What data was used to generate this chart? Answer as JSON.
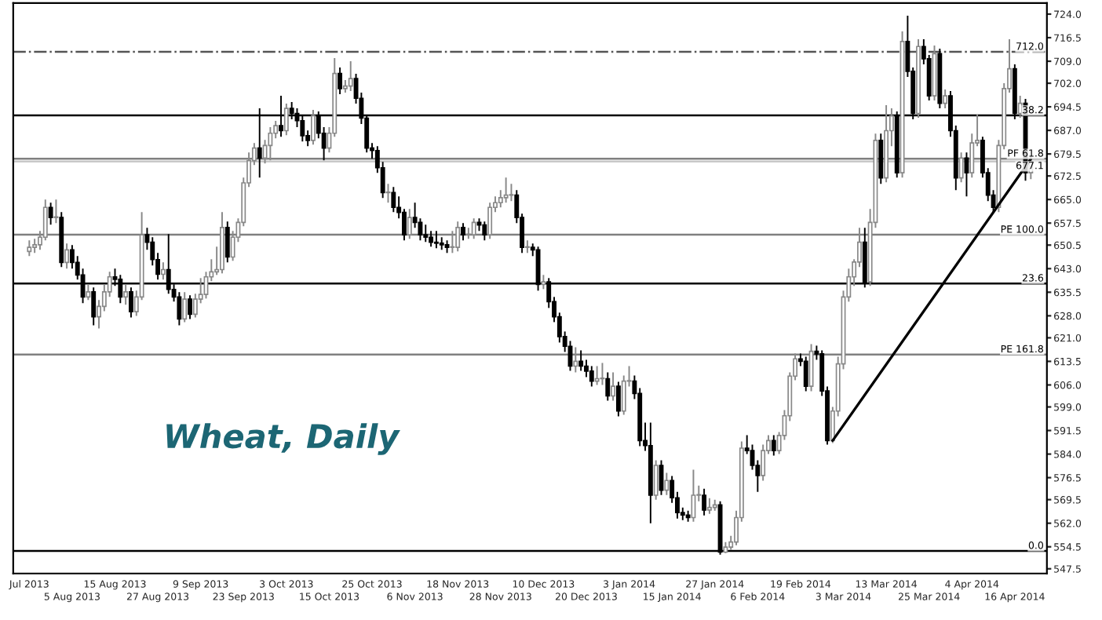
{
  "chart_data": {
    "type": "candlestick",
    "title": "Wheat, Daily",
    "categories": [
      "Jul 2013",
      null,
      null,
      null,
      null,
      null,
      null,
      null,
      "5 Aug 2013",
      null,
      null,
      null,
      null,
      null,
      null,
      null,
      "15 Aug 2013",
      null,
      null,
      null,
      null,
      null,
      null,
      null,
      "27 Aug 2013",
      null,
      null,
      null,
      null,
      null,
      null,
      null,
      "9 Sep 2013",
      null,
      null,
      null,
      null,
      null,
      null,
      null,
      "23 Sep 2013",
      null,
      null,
      null,
      null,
      null,
      null,
      null,
      "3 Oct 2013",
      null,
      null,
      null,
      null,
      null,
      null,
      null,
      "15 Oct 2013",
      null,
      null,
      null,
      null,
      null,
      null,
      null,
      "25 Oct 2013",
      null,
      null,
      null,
      null,
      null,
      null,
      null,
      "6 Nov 2013",
      null,
      null,
      null,
      null,
      null,
      null,
      null,
      "18 Nov 2013",
      null,
      null,
      null,
      null,
      null,
      null,
      null,
      "28 Nov 2013",
      null,
      null,
      null,
      null,
      null,
      null,
      null,
      "10 Dec 2013",
      null,
      null,
      null,
      null,
      null,
      null,
      null,
      "20 Dec 2013",
      null,
      null,
      null,
      null,
      null,
      null,
      null,
      "3 Jan 2014",
      null,
      null,
      null,
      null,
      null,
      null,
      null,
      "15 Jan 2014",
      null,
      null,
      null,
      null,
      null,
      null,
      null,
      "27 Jan 2014",
      null,
      null,
      null,
      null,
      null,
      null,
      null,
      "6 Feb 2014",
      null,
      null,
      null,
      null,
      null,
      null,
      null,
      "19 Feb 2014",
      null,
      null,
      null,
      null,
      null,
      null,
      null,
      "3 Mar 2014",
      null,
      null,
      null,
      null,
      null,
      null,
      null,
      "13 Mar 2014",
      null,
      null,
      null,
      null,
      null,
      null,
      null,
      "25 Mar 2014",
      null,
      null,
      null,
      null,
      null,
      null,
      null,
      "4 Apr 2014",
      null,
      null,
      null,
      null,
      null,
      null,
      null,
      "16 Apr 2014",
      null,
      null,
      null
    ],
    "ohlc": [
      [
        648.5,
        652,
        647,
        649.8
      ],
      [
        649.8,
        652.5,
        648,
        650.6
      ],
      [
        650.6,
        655,
        649,
        653
      ],
      [
        653,
        665,
        652,
        662.5
      ],
      [
        662.5,
        664,
        657,
        659.3
      ],
      [
        659.3,
        665,
        657.5,
        659.3
      ],
      [
        659.3,
        661,
        643.5,
        645
      ],
      [
        645,
        651,
        643,
        649
      ],
      [
        649,
        650.5,
        643,
        645
      ],
      [
        645,
        647,
        639.5,
        641
      ],
      [
        641,
        643,
        632,
        634
      ],
      [
        634,
        638,
        633,
        635.6
      ],
      [
        635.6,
        637,
        625,
        627.7
      ],
      [
        627.7,
        633,
        624,
        631
      ],
      [
        631,
        638,
        629.5,
        635.6
      ],
      [
        635.6,
        642,
        634,
        640.4
      ],
      [
        640.4,
        643,
        637.5,
        639.6
      ],
      [
        639.6,
        641,
        632,
        634
      ],
      [
        634,
        638,
        631.5,
        635.6
      ],
      [
        635.6,
        637,
        627.5,
        629.3
      ],
      [
        629.3,
        636,
        628,
        634
      ],
      [
        634,
        661,
        633,
        653.8
      ],
      [
        653.8,
        656,
        649,
        651.4
      ],
      [
        651.4,
        653,
        644,
        645.9
      ],
      [
        645.9,
        648,
        639.5,
        641.2
      ],
      [
        641.2,
        645,
        639.5,
        642.7
      ],
      [
        642.7,
        654,
        635,
        636.4
      ],
      [
        636.4,
        638,
        632.5,
        634
      ],
      [
        634,
        635.5,
        625,
        627
      ],
      [
        627,
        635.5,
        626,
        633.3
      ],
      [
        633.3,
        634.5,
        627,
        628.5
      ],
      [
        628.5,
        635,
        627.5,
        633.3
      ],
      [
        633.3,
        640,
        632,
        634.8
      ],
      [
        634.8,
        642,
        633.5,
        640.4
      ],
      [
        640.4,
        646,
        639,
        642
      ],
      [
        642,
        650,
        641,
        642.7
      ],
      [
        642.7,
        661,
        641.5,
        656.1
      ],
      [
        656.1,
        658,
        645,
        646.7
      ],
      [
        646.7,
        655,
        645.5,
        653
      ],
      [
        653,
        659,
        651.5,
        657.7
      ],
      [
        657.7,
        672,
        656.5,
        670.3
      ],
      [
        670.3,
        680,
        669,
        677.4
      ],
      [
        677.4,
        683,
        676,
        681.4
      ],
      [
        681.4,
        694,
        672,
        678.2
      ],
      [
        678.2,
        684,
        676.5,
        682.2
      ],
      [
        682.2,
        688,
        677.5,
        686.1
      ],
      [
        686.1,
        690,
        684.5,
        688.5
      ],
      [
        688.5,
        698,
        685,
        686.9
      ],
      [
        686.9,
        695.5,
        685.5,
        694
      ],
      [
        694,
        696,
        690.5,
        692.4
      ],
      [
        692.4,
        694,
        688,
        690.1
      ],
      [
        690.1,
        692,
        683.5,
        685.3
      ],
      [
        685.3,
        687,
        682,
        683.8
      ],
      [
        683.8,
        693.5,
        682.5,
        691.7
      ],
      [
        691.7,
        693,
        684.5,
        686.1
      ],
      [
        686.1,
        688,
        677.5,
        681.4
      ],
      [
        681.4,
        688,
        680,
        686.1
      ],
      [
        686.1,
        710,
        685,
        705.1
      ],
      [
        705.1,
        707,
        698.5,
        700.3
      ],
      [
        700.3,
        703,
        699,
        701.1
      ],
      [
        701.1,
        709,
        699.5,
        703.5
      ],
      [
        703.5,
        705,
        695.5,
        697.2
      ],
      [
        697.2,
        699,
        689,
        690.9
      ],
      [
        690.9,
        692,
        680,
        681.4
      ],
      [
        681.4,
        683,
        678,
        680.6
      ],
      [
        680.6,
        682,
        673.5,
        675.1
      ],
      [
        675.1,
        677,
        665.5,
        667.2
      ],
      [
        667.2,
        670,
        664,
        667.2
      ],
      [
        667.2,
        669,
        661,
        662.5
      ],
      [
        662.5,
        666,
        659,
        660.9
      ],
      [
        660.9,
        662,
        652,
        653.8
      ],
      [
        653.8,
        662,
        652.5,
        659.3
      ],
      [
        659.3,
        664,
        656,
        657.7
      ],
      [
        657.7,
        659,
        652,
        653.8
      ],
      [
        653.8,
        657,
        651.5,
        653
      ],
      [
        653,
        655,
        650,
        651.4
      ],
      [
        651.4,
        655,
        649.5,
        651.1
      ],
      [
        651.1,
        653,
        649,
        650.6
      ],
      [
        650.6,
        652,
        648,
        649.8
      ],
      [
        649.8,
        655,
        648,
        649.8
      ],
      [
        649.8,
        658,
        648.5,
        656.1
      ],
      [
        656.1,
        657.5,
        652,
        653.8
      ],
      [
        653.8,
        656,
        652.5,
        653.8
      ],
      [
        653.8,
        659,
        652.5,
        657.7
      ],
      [
        657.7,
        659,
        655,
        656.9
      ],
      [
        656.9,
        658,
        652,
        653.8
      ],
      [
        653.8,
        664,
        652.5,
        662.5
      ],
      [
        662.5,
        666,
        661,
        664
      ],
      [
        664,
        668,
        662.5,
        665.6
      ],
      [
        665.6,
        672,
        664,
        666.4
      ],
      [
        666.4,
        670,
        664.5,
        666.4
      ],
      [
        666.4,
        668,
        657.5,
        659.3
      ],
      [
        659.3,
        660.5,
        648,
        649.8
      ],
      [
        649.8,
        652,
        648,
        649.8
      ],
      [
        649.8,
        651,
        647,
        649
      ],
      [
        649,
        650,
        636,
        638
      ],
      [
        638,
        641,
        636.5,
        638.8
      ],
      [
        638.8,
        640,
        630.5,
        632.5
      ],
      [
        632.5,
        634,
        626,
        627.7
      ],
      [
        627.7,
        629,
        619.5,
        621.4
      ],
      [
        621.4,
        623,
        616.5,
        618.3
      ],
      [
        618.3,
        620,
        610.5,
        612
      ],
      [
        612,
        618,
        610,
        613.5
      ],
      [
        613.5,
        617,
        610.5,
        612
      ],
      [
        612,
        614,
        608.5,
        610.4
      ],
      [
        610.4,
        612,
        605.5,
        607.2
      ],
      [
        607.2,
        612,
        606,
        608
      ],
      [
        608,
        613,
        606,
        608
      ],
      [
        608,
        610,
        601,
        602.5
      ],
      [
        602.5,
        610,
        601,
        605.6
      ],
      [
        605.6,
        607,
        596,
        597.7
      ],
      [
        597.7,
        609,
        596.5,
        607.2
      ],
      [
        607.2,
        612,
        605.5,
        607.2
      ],
      [
        607.2,
        609,
        601.5,
        603.3
      ],
      [
        603.3,
        605,
        586.5,
        588.3
      ],
      [
        588.3,
        594,
        585,
        586.7
      ],
      [
        586.7,
        594,
        562,
        570.9
      ],
      [
        570.9,
        582,
        569.5,
        580.4
      ],
      [
        580.4,
        582,
        571,
        572.5
      ],
      [
        572.5,
        578,
        571,
        575.6
      ],
      [
        575.6,
        577,
        568.5,
        570.1
      ],
      [
        570.1,
        572,
        563.5,
        565.4
      ],
      [
        565.4,
        567,
        563,
        564.6
      ],
      [
        564.6,
        566,
        562.5,
        563.8
      ],
      [
        563.8,
        579,
        562.5,
        570.9
      ],
      [
        570.9,
        574,
        569,
        570.9
      ],
      [
        570.9,
        573,
        564.5,
        566.2
      ],
      [
        566.2,
        570,
        565,
        567
      ],
      [
        567,
        569.5,
        566,
        567.8
      ],
      [
        567.8,
        569,
        552,
        552.8
      ],
      [
        552.8,
        556,
        552.5,
        554.4
      ],
      [
        554.4,
        558,
        553.5,
        556
      ],
      [
        556,
        566,
        555,
        563.8
      ],
      [
        563.8,
        588,
        562.5,
        585.9
      ],
      [
        585.9,
        590,
        584,
        585.1
      ],
      [
        585.1,
        587,
        579,
        580.4
      ],
      [
        580.4,
        582,
        572,
        577.2
      ],
      [
        577.2,
        587,
        575.5,
        585.1
      ],
      [
        585.1,
        590,
        584,
        588.3
      ],
      [
        588.3,
        590,
        583.5,
        585.1
      ],
      [
        585.1,
        591,
        584,
        589.9
      ],
      [
        589.9,
        598,
        588.5,
        596.2
      ],
      [
        596.2,
        610,
        594.5,
        608.8
      ],
      [
        608.8,
        616,
        607.5,
        614.3
      ],
      [
        614.3,
        616,
        612,
        613.5
      ],
      [
        613.5,
        615,
        604,
        605.6
      ],
      [
        605.6,
        619,
        604,
        616.7
      ],
      [
        616.7,
        618.5,
        614,
        615.9
      ],
      [
        615.9,
        617,
        602.5,
        604.1
      ],
      [
        604.1,
        605.5,
        587,
        588.3
      ],
      [
        588.3,
        599,
        587.5,
        597.7
      ],
      [
        597.7,
        615,
        596,
        612.7
      ],
      [
        612.7,
        636,
        611,
        634
      ],
      [
        634,
        643,
        632.5,
        640.4
      ],
      [
        640.4,
        646,
        637.5,
        645.1
      ],
      [
        645.1,
        656,
        643.5,
        651.4
      ],
      [
        651.4,
        656,
        637,
        638.8
      ],
      [
        638.8,
        662,
        637.5,
        657.7
      ],
      [
        657.7,
        686,
        656,
        683.8
      ],
      [
        683.8,
        686,
        670,
        671.9
      ],
      [
        671.9,
        695,
        670.5,
        686.9
      ],
      [
        686.9,
        694,
        682,
        691.6
      ],
      [
        691.6,
        693,
        672,
        673.5
      ],
      [
        673.5,
        718.5,
        672,
        715.3
      ],
      [
        715.3,
        723.5,
        704,
        705.8
      ],
      [
        705.8,
        707,
        690.5,
        692.4
      ],
      [
        692.4,
        716,
        691,
        713.7
      ],
      [
        713.7,
        716,
        708,
        709.8
      ],
      [
        709.8,
        711,
        696.5,
        698
      ],
      [
        698,
        714,
        696.5,
        711.4
      ],
      [
        711.4,
        713,
        694,
        695.6
      ],
      [
        695.6,
        700,
        694,
        698
      ],
      [
        698,
        699.5,
        685,
        686.9
      ],
      [
        686.9,
        688.5,
        668,
        671.9
      ],
      [
        671.9,
        680,
        670.5,
        678.2
      ],
      [
        678.2,
        680,
        666,
        673.5
      ],
      [
        673.5,
        686,
        672,
        683
      ],
      [
        683,
        692,
        682,
        683.8
      ],
      [
        683.8,
        685,
        672,
        673.5
      ],
      [
        673.5,
        675,
        664.5,
        666.4
      ],
      [
        666.4,
        668,
        661,
        662.5
      ],
      [
        662.5,
        684,
        661,
        682.2
      ],
      [
        682.2,
        702,
        681,
        700.3
      ],
      [
        700.3,
        716,
        699,
        706.6
      ],
      [
        706.6,
        708,
        690.5,
        692.4
      ],
      [
        692.4,
        698,
        691,
        695.6
      ],
      [
        695.6,
        697,
        671,
        673.5
      ],
      [
        673.5,
        679,
        671.5,
        677.1
      ]
    ],
    "series": [
      {
        "type": "line",
        "color": "#000000",
        "values": [
          null,
          null,
          null,
          null,
          null,
          null,
          null,
          null,
          null,
          null,
          null,
          null,
          null,
          null,
          null,
          null,
          null,
          null,
          null,
          null,
          null,
          null,
          null,
          null,
          null,
          null,
          null,
          null,
          null,
          null,
          null,
          null,
          null,
          null,
          null,
          null,
          null,
          null,
          null,
          null,
          null,
          null,
          null,
          null,
          null,
          null,
          null,
          null,
          null,
          null,
          null,
          null,
          null,
          null,
          null,
          null,
          null,
          null,
          null,
          null,
          null,
          null,
          null,
          null,
          null,
          null,
          null,
          null,
          null,
          null,
          null,
          null,
          null,
          null,
          null,
          null,
          null,
          null,
          null,
          null,
          null,
          null,
          null,
          null,
          null,
          null,
          null,
          null,
          null,
          null,
          null,
          null,
          null,
          null,
          null,
          null,
          null,
          null,
          null,
          null,
          null,
          null,
          null,
          null,
          null,
          null,
          null,
          null,
          null,
          null,
          null,
          null,
          null,
          null,
          null,
          null,
          null,
          null,
          null,
          null,
          null,
          null,
          null,
          null,
          null,
          null,
          null,
          null,
          null,
          null,
          null,
          null,
          null,
          null,
          null,
          null,
          null,
          null,
          null,
          null,
          null,
          null,
          null,
          null,
          null,
          null,
          null,
          null,
          null,
          null,
          588.3,
          null,
          null,
          null,
          null,
          null,
          null,
          null,
          null,
          null,
          null,
          null,
          null,
          null,
          null,
          null,
          null,
          null,
          null,
          null,
          null,
          null,
          null,
          null,
          null,
          null,
          null,
          null,
          null,
          null,
          null,
          null,
          null,
          null,
          null,
          null,
          null,
          677.9
        ]
      }
    ],
    "ylim": [
      546,
      727.5
    ],
    "yticks": [
      {
        "value": 547.5,
        "label": "547.5"
      },
      {
        "value": 554.5,
        "label": "554.5"
      },
      {
        "value": 562,
        "label": "562.0"
      },
      {
        "value": 569.5,
        "label": "569.5"
      },
      {
        "value": 576.5,
        "label": "576.5"
      },
      {
        "value": 584,
        "label": "584.0"
      },
      {
        "value": 591.5,
        "label": "591.5"
      },
      {
        "value": 599,
        "label": "599.0"
      },
      {
        "value": 606,
        "label": "606.0"
      },
      {
        "value": 613.5,
        "label": "613.5"
      },
      {
        "value": 621,
        "label": "621.0"
      },
      {
        "value": 628,
        "label": "628.0"
      },
      {
        "value": 635.5,
        "label": "635.5"
      },
      {
        "value": 643,
        "label": "643.0"
      },
      {
        "value": 650.5,
        "label": "650.5"
      },
      {
        "value": 657.5,
        "label": "657.5"
      },
      {
        "value": 665,
        "label": "665.0"
      },
      {
        "value": 672.5,
        "label": "672.5"
      },
      {
        "value": 679.5,
        "label": "679.5"
      },
      {
        "value": 687,
        "label": "687.0"
      },
      {
        "value": 694.5,
        "label": "694.5"
      },
      {
        "value": 702,
        "label": "702.0"
      },
      {
        "value": 709,
        "label": "709.0"
      },
      {
        "value": 716.5,
        "label": "716.5"
      },
      {
        "value": 724,
        "label": "724.0"
      }
    ],
    "ref_lines": [
      {
        "axis": "y",
        "value": 712.0,
        "label": "712.0",
        "color": "#555555",
        "line_style": "dashdot"
      },
      {
        "axis": "y",
        "value": 691.8,
        "color": "#000000",
        "line_style": "solid"
      },
      {
        "axis": "y",
        "value": 678.0,
        "label": "PF 61.8",
        "color": "#808080",
        "line_style": "solid"
      },
      {
        "axis": "y",
        "value": 677.1,
        "label": "677.1",
        "color": "#c8c8c8",
        "line_style": "solid"
      },
      {
        "axis": "y",
        "value": 653.8,
        "label": "PE 100.0",
        "color": "#808080",
        "line_style": "solid"
      },
      {
        "axis": "y",
        "value": 638.3,
        "color": "#000000",
        "line_style": "solid"
      },
      {
        "axis": "y",
        "value": 615.7,
        "label": "PE 161.8",
        "color": "#808080",
        "line_style": "solid"
      },
      {
        "axis": "y",
        "value": 553.2,
        "color": "#000000",
        "line_style": "solid"
      }
    ],
    "annotations": [
      {
        "text": "38.2",
        "y": 691.8
      },
      {
        "text": "23.6",
        "y": 638.3
      },
      {
        "text": "0.0",
        "y": 553.2
      }
    ],
    "grid": false,
    "legend": false
  }
}
